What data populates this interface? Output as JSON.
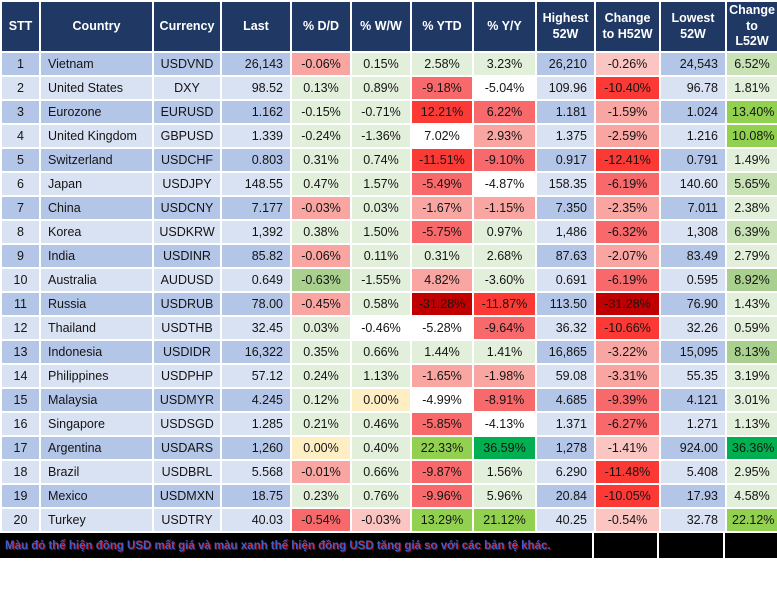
{
  "header": {
    "columns": [
      {
        "key": "stt",
        "label": "STT"
      },
      {
        "key": "country",
        "label": "Country"
      },
      {
        "key": "currency",
        "label": "Currency"
      },
      {
        "key": "last",
        "label": "Last"
      },
      {
        "key": "dd",
        "label": "% D/D"
      },
      {
        "key": "ww",
        "label": "% W/W"
      },
      {
        "key": "ytd",
        "label": "% YTD"
      },
      {
        "key": "yy",
        "label": "% Y/Y"
      },
      {
        "key": "high52",
        "label": "Highest 52W"
      },
      {
        "key": "chg_h52",
        "label": "Change to H52W"
      },
      {
        "key": "low52",
        "label": "Lowest 52W"
      },
      {
        "key": "chg_l52",
        "label": "Change to L52W"
      }
    ]
  },
  "colors": {
    "header_bg": "#203864",
    "band_odd": "#B4C6E7",
    "band_even": "#D9E2F2",
    "scale": {
      "p1": "#FBC5C2",
      "p2": "#F9A6A2",
      "p3": "#F8８B85",
      "p6": "#C00000",
      "y": "#FDEEC3",
      "n1": "#E2EFDA",
      "n2": "#C8E2B5",
      "n3": "#A9D08E",
      "n4": "#92D050",
      "n5": "#00B050",
      "p4": "#F8696B",
      "p5": "#FB3A36"
    },
    "footer_bg": "#000000",
    "footer_text": "#3d5fc9"
  },
  "rows": [
    {
      "stt": "1",
      "country": "Vietnam",
      "currency": "USDVND",
      "last": "26,143",
      "dd": {
        "v": "-0.06%",
        "c": "p2"
      },
      "ww": {
        "v": "0.15%",
        "c": "n1"
      },
      "ytd": {
        "v": "2.58%",
        "c": "n1"
      },
      "yy": {
        "v": "3.23%",
        "c": "n1"
      },
      "high": "26,210",
      "chgh": {
        "v": "-0.26%",
        "c": "p1"
      },
      "low": "24,543",
      "chgl": {
        "v": "6.52%",
        "c": "n2"
      }
    },
    {
      "stt": "2",
      "country": "United States",
      "currency": "DXY",
      "last": "98.52",
      "dd": {
        "v": "0.13%",
        "c": "n1"
      },
      "ww": {
        "v": "0.89%",
        "c": "n1"
      },
      "ytd": {
        "v": "-9.18%",
        "c": "p4"
      },
      "yy": {
        "v": "-5.04%",
        "c": "p3"
      },
      "high": "109.96",
      "chgh": {
        "v": "-10.40%",
        "c": "p5"
      },
      "low": "96.78",
      "chgl": {
        "v": "1.81%",
        "c": "n1"
      }
    },
    {
      "stt": "3",
      "country": "Eurozone",
      "currency": "EURUSD",
      "last": "1.162",
      "dd": {
        "v": "-0.15%",
        "c": "n1"
      },
      "ww": {
        "v": "-0.71%",
        "c": "n1"
      },
      "ytd": {
        "v": "12.21%",
        "c": "p5"
      },
      "yy": {
        "v": "6.22%",
        "c": "p4"
      },
      "high": "1.181",
      "chgh": {
        "v": "-1.59%",
        "c": "p2"
      },
      "low": "1.024",
      "chgl": {
        "v": "13.40%",
        "c": "n4"
      }
    },
    {
      "stt": "4",
      "country": "United Kingdom",
      "currency": "GBPUSD",
      "last": "1.339",
      "dd": {
        "v": "-0.24%",
        "c": "n1"
      },
      "ww": {
        "v": "-1.36%",
        "c": "n1"
      },
      "ytd": {
        "v": "7.02%",
        "c": "p3"
      },
      "yy": {
        "v": "2.93%",
        "c": "p2"
      },
      "high": "1.375",
      "chgh": {
        "v": "-2.59%",
        "c": "p2"
      },
      "low": "1.216",
      "chgl": {
        "v": "10.08%",
        "c": "n4"
      }
    },
    {
      "stt": "5",
      "country": "Switzerland",
      "currency": "USDCHF",
      "last": "0.803",
      "dd": {
        "v": "0.31%",
        "c": "n1"
      },
      "ww": {
        "v": "0.74%",
        "c": "n1"
      },
      "ytd": {
        "v": "-11.51%",
        "c": "p5"
      },
      "yy": {
        "v": "-9.10%",
        "c": "p4"
      },
      "high": "0.917",
      "chgh": {
        "v": "-12.41%",
        "c": "p5"
      },
      "low": "0.791",
      "chgl": {
        "v": "1.49%",
        "c": "n1"
      }
    },
    {
      "stt": "6",
      "country": "Japan",
      "currency": "USDJPY",
      "last": "148.55",
      "dd": {
        "v": "0.47%",
        "c": "n1"
      },
      "ww": {
        "v": "1.57%",
        "c": "n1"
      },
      "ytd": {
        "v": "-5.49%",
        "c": "p4"
      },
      "yy": {
        "v": "-4.87%",
        "c": "p3"
      },
      "high": "158.35",
      "chgh": {
        "v": "-6.19%",
        "c": "p4"
      },
      "low": "140.60",
      "chgl": {
        "v": "5.65%",
        "c": "n2"
      }
    },
    {
      "stt": "7",
      "country": "China",
      "currency": "USDCNY",
      "last": "7.177",
      "dd": {
        "v": "-0.03%",
        "c": "p2"
      },
      "ww": {
        "v": "0.03%",
        "c": "n1"
      },
      "ytd": {
        "v": "-1.67%",
        "c": "p2"
      },
      "yy": {
        "v": "-1.15%",
        "c": "p2"
      },
      "high": "7.350",
      "chgh": {
        "v": "-2.35%",
        "c": "p2"
      },
      "low": "7.011",
      "chgl": {
        "v": "2.38%",
        "c": "n1"
      }
    },
    {
      "stt": "8",
      "country": "Korea",
      "currency": "USDKRW",
      "last": "1,392",
      "dd": {
        "v": "0.38%",
        "c": "n1"
      },
      "ww": {
        "v": "1.50%",
        "c": "n1"
      },
      "ytd": {
        "v": "-5.75%",
        "c": "p4"
      },
      "yy": {
        "v": "0.97%",
        "c": "n1"
      },
      "high": "1,486",
      "chgh": {
        "v": "-6.32%",
        "c": "p4"
      },
      "low": "1,308",
      "chgl": {
        "v": "6.39%",
        "c": "n2"
      }
    },
    {
      "stt": "9",
      "country": "India",
      "currency": "USDINR",
      "last": "85.82",
      "dd": {
        "v": "-0.06%",
        "c": "p2"
      },
      "ww": {
        "v": "0.11%",
        "c": "n1"
      },
      "ytd": {
        "v": "0.31%",
        "c": "n1"
      },
      "yy": {
        "v": "2.68%",
        "c": "n1"
      },
      "high": "87.63",
      "chgh": {
        "v": "-2.07%",
        "c": "p2"
      },
      "low": "83.49",
      "chgl": {
        "v": "2.79%",
        "c": "n1"
      }
    },
    {
      "stt": "10",
      "country": "Australia",
      "currency": "AUDUSD",
      "last": "0.649",
      "dd": {
        "v": "-0.63%",
        "c": "n3"
      },
      "ww": {
        "v": "-1.55%",
        "c": "n1"
      },
      "ytd": {
        "v": "4.82%",
        "c": "p2"
      },
      "yy": {
        "v": "-3.60%",
        "c": "n1"
      },
      "high": "0.691",
      "chgh": {
        "v": "-6.19%",
        "c": "p4"
      },
      "low": "0.595",
      "chgl": {
        "v": "8.92%",
        "c": "n3"
      }
    },
    {
      "stt": "11",
      "country": "Russia",
      "currency": "USDRUB",
      "last": "78.00",
      "dd": {
        "v": "-0.45%",
        "c": "p2"
      },
      "ww": {
        "v": "0.58%",
        "c": "n1"
      },
      "ytd": {
        "v": "-31.28%",
        "c": "p6"
      },
      "yy": {
        "v": "-11.87%",
        "c": "p5"
      },
      "high": "113.50",
      "chgh": {
        "v": "-31.28%",
        "c": "p6"
      },
      "low": "76.90",
      "chgl": {
        "v": "1.43%",
        "c": "n1"
      }
    },
    {
      "stt": "12",
      "country": "Thailand",
      "currency": "USDTHB",
      "last": "32.45",
      "dd": {
        "v": "0.03%",
        "c": "n1"
      },
      "ww": {
        "v": "-0.46%",
        "c": "p3"
      },
      "ytd": {
        "v": "-5.28%",
        "c": "p3"
      },
      "yy": {
        "v": "-9.64%",
        "c": "p4"
      },
      "high": "36.32",
      "chgh": {
        "v": "-10.66%",
        "c": "p5"
      },
      "low": "32.26",
      "chgl": {
        "v": "0.59%",
        "c": "n1"
      }
    },
    {
      "stt": "13",
      "country": "Indonesia",
      "currency": "USDIDR",
      "last": "16,322",
      "dd": {
        "v": "0.35%",
        "c": "n1"
      },
      "ww": {
        "v": "0.66%",
        "c": "n1"
      },
      "ytd": {
        "v": "1.44%",
        "c": "n1"
      },
      "yy": {
        "v": "1.41%",
        "c": "n1"
      },
      "high": "16,865",
      "chgh": {
        "v": "-3.22%",
        "c": "p2"
      },
      "low": "15,095",
      "chgl": {
        "v": "8.13%",
        "c": "n3"
      }
    },
    {
      "stt": "14",
      "country": "Philippines",
      "currency": "USDPHP",
      "last": "57.12",
      "dd": {
        "v": "0.24%",
        "c": "n1"
      },
      "ww": {
        "v": "1.13%",
        "c": "n1"
      },
      "ytd": {
        "v": "-1.65%",
        "c": "p2"
      },
      "yy": {
        "v": "-1.98%",
        "c": "p2"
      },
      "high": "59.08",
      "chgh": {
        "v": "-3.31%",
        "c": "p2"
      },
      "low": "55.35",
      "chgl": {
        "v": "3.19%",
        "c": "n1"
      }
    },
    {
      "stt": "15",
      "country": "Malaysia",
      "currency": "USDMYR",
      "last": "4.245",
      "dd": {
        "v": "0.12%",
        "c": "n1"
      },
      "ww": {
        "v": "0.00%",
        "c": "y"
      },
      "ytd": {
        "v": "-4.99%",
        "c": "p3"
      },
      "yy": {
        "v": "-8.91%",
        "c": "p4"
      },
      "high": "4.685",
      "chgh": {
        "v": "-9.39%",
        "c": "p4"
      },
      "low": "4.121",
      "chgl": {
        "v": "3.01%",
        "c": "n1"
      }
    },
    {
      "stt": "16",
      "country": "Singapore",
      "currency": "USDSGD",
      "last": "1.285",
      "dd": {
        "v": "0.21%",
        "c": "n1"
      },
      "ww": {
        "v": "0.46%",
        "c": "n1"
      },
      "ytd": {
        "v": "-5.85%",
        "c": "p4"
      },
      "yy": {
        "v": "-4.13%",
        "c": "p3"
      },
      "high": "1.371",
      "chgh": {
        "v": "-6.27%",
        "c": "p4"
      },
      "low": "1.271",
      "chgl": {
        "v": "1.13%",
        "c": "n1"
      }
    },
    {
      "stt": "17",
      "country": "Argentina",
      "currency": "USDARS",
      "last": "1,260",
      "dd": {
        "v": "0.00%",
        "c": "y"
      },
      "ww": {
        "v": "0.40%",
        "c": "n1"
      },
      "ytd": {
        "v": "22.33%",
        "c": "n4"
      },
      "yy": {
        "v": "36.59%",
        "c": "n5"
      },
      "high": "1,278",
      "chgh": {
        "v": "-1.41%",
        "c": "p1"
      },
      "low": "924.00",
      "chgl": {
        "v": "36.36%",
        "c": "n5"
      }
    },
    {
      "stt": "18",
      "country": "Brazil",
      "currency": "USDBRL",
      "last": "5.568",
      "dd": {
        "v": "-0.01%",
        "c": "p2"
      },
      "ww": {
        "v": "0.66%",
        "c": "n1"
      },
      "ytd": {
        "v": "-9.87%",
        "c": "p4"
      },
      "yy": {
        "v": "1.56%",
        "c": "n1"
      },
      "high": "6.290",
      "chgh": {
        "v": "-11.48%",
        "c": "p5"
      },
      "low": "5.408",
      "chgl": {
        "v": "2.95%",
        "c": "n1"
      }
    },
    {
      "stt": "19",
      "country": "Mexico",
      "currency": "USDMXN",
      "last": "18.75",
      "dd": {
        "v": "0.23%",
        "c": "n1"
      },
      "ww": {
        "v": "0.76%",
        "c": "n1"
      },
      "ytd": {
        "v": "-9.96%",
        "c": "p4"
      },
      "yy": {
        "v": "5.96%",
        "c": "n1"
      },
      "high": "20.84",
      "chgh": {
        "v": "-10.05%",
        "c": "p5"
      },
      "low": "17.93",
      "chgl": {
        "v": "4.58%",
        "c": "n1"
      }
    },
    {
      "stt": "20",
      "country": "Turkey",
      "currency": "USDTRY",
      "last": "40.03",
      "dd": {
        "v": "-0.54%",
        "c": "p4"
      },
      "ww": {
        "v": "-0.03%",
        "c": "p1"
      },
      "ytd": {
        "v": "13.29%",
        "c": "n4"
      },
      "yy": {
        "v": "21.12%",
        "c": "n4"
      },
      "high": "40.25",
      "chgh": {
        "v": "-0.54%",
        "c": "p1"
      },
      "low": "32.78",
      "chgl": {
        "v": "22.12%",
        "c": "n4"
      }
    }
  ],
  "footer": {
    "caption": "Màu đỏ thể hiện đồng USD mất giá và màu xanh thể hiện đồng USD tăng giá so với các bản tệ khác."
  },
  "chart_data": {
    "type": "table",
    "title": "USD exchange rates vs world currencies (52-week view)",
    "columns": [
      "STT",
      "Country",
      "Currency",
      "Last",
      "% D/D",
      "% W/W",
      "% YTD",
      "% Y/Y",
      "Highest 52W",
      "Change to H52W",
      "Lowest 52W",
      "Change to L52W"
    ],
    "rows": [
      [
        "1",
        "Vietnam",
        "USDVND",
        "26,143",
        "-0.06%",
        "0.15%",
        "2.58%",
        "3.23%",
        "26,210",
        "-0.26%",
        "24,543",
        "6.52%"
      ],
      [
        "2",
        "United States",
        "DXY",
        "98.52",
        "0.13%",
        "0.89%",
        "-9.18%",
        "-5.04%",
        "109.96",
        "-10.40%",
        "96.78",
        "1.81%"
      ],
      [
        "3",
        "Eurozone",
        "EURUSD",
        "1.162",
        "-0.15%",
        "-0.71%",
        "12.21%",
        "6.22%",
        "1.181",
        "-1.59%",
        "1.024",
        "13.40%"
      ],
      [
        "4",
        "United Kingdom",
        "GBPUSD",
        "1.339",
        "-0.24%",
        "-1.36%",
        "7.02%",
        "2.93%",
        "1.375",
        "-2.59%",
        "1.216",
        "10.08%"
      ],
      [
        "5",
        "Switzerland",
        "USDCHF",
        "0.803",
        "0.31%",
        "0.74%",
        "-11.51%",
        "-9.10%",
        "0.917",
        "-12.41%",
        "0.791",
        "1.49%"
      ],
      [
        "6",
        "Japan",
        "USDJPY",
        "148.55",
        "0.47%",
        "1.57%",
        "-5.49%",
        "-4.87%",
        "158.35",
        "-6.19%",
        "140.60",
        "5.65%"
      ],
      [
        "7",
        "China",
        "USDCNY",
        "7.177",
        "-0.03%",
        "0.03%",
        "-1.67%",
        "-1.15%",
        "7.350",
        "-2.35%",
        "7.011",
        "2.38%"
      ],
      [
        "8",
        "Korea",
        "USDKRW",
        "1,392",
        "0.38%",
        "1.50%",
        "-5.75%",
        "0.97%",
        "1,486",
        "-6.32%",
        "1,308",
        "6.39%"
      ],
      [
        "9",
        "India",
        "USDINR",
        "85.82",
        "-0.06%",
        "0.11%",
        "0.31%",
        "2.68%",
        "87.63",
        "-2.07%",
        "83.49",
        "2.79%"
      ],
      [
        "10",
        "Australia",
        "AUDUSD",
        "0.649",
        "-0.63%",
        "-1.55%",
        "4.82%",
        "-3.60%",
        "0.691",
        "-6.19%",
        "0.595",
        "8.92%"
      ],
      [
        "11",
        "Russia",
        "USDRUB",
        "78.00",
        "-0.45%",
        "0.58%",
        "-31.28%",
        "-11.87%",
        "113.50",
        "-31.28%",
        "76.90",
        "1.43%"
      ],
      [
        "12",
        "Thailand",
        "USDTHB",
        "32.45",
        "0.03%",
        "-0.46%",
        "-5.28%",
        "-9.64%",
        "36.32",
        "-10.66%",
        "32.26",
        "0.59%"
      ],
      [
        "13",
        "Indonesia",
        "USDIDR",
        "16,322",
        "0.35%",
        "0.66%",
        "1.44%",
        "1.41%",
        "16,865",
        "-3.22%",
        "15,095",
        "8.13%"
      ],
      [
        "14",
        "Philippines",
        "USDPHP",
        "57.12",
        "0.24%",
        "1.13%",
        "-1.65%",
        "-1.98%",
        "59.08",
        "-3.31%",
        "55.35",
        "3.19%"
      ],
      [
        "15",
        "Malaysia",
        "USDMYR",
        "4.245",
        "0.12%",
        "0.00%",
        "-4.99%",
        "-8.91%",
        "4.685",
        "-9.39%",
        "4.121",
        "3.01%"
      ],
      [
        "16",
        "Singapore",
        "USDSGD",
        "1.285",
        "0.21%",
        "0.46%",
        "-5.85%",
        "-4.13%",
        "1.371",
        "-6.27%",
        "1.271",
        "1.13%"
      ],
      [
        "17",
        "Argentina",
        "USDARS",
        "1,260",
        "0.00%",
        "0.40%",
        "22.33%",
        "36.59%",
        "1,278",
        "-1.41%",
        "924.00",
        "36.36%"
      ],
      [
        "18",
        "Brazil",
        "USDBRL",
        "5.568",
        "-0.01%",
        "0.66%",
        "-9.87%",
        "1.56%",
        "6.290",
        "-11.48%",
        "5.408",
        "2.95%"
      ],
      [
        "19",
        "Mexico",
        "USDMXN",
        "18.75",
        "0.23%",
        "0.76%",
        "-9.96%",
        "5.96%",
        "20.84",
        "-10.05%",
        "17.93",
        "4.58%"
      ],
      [
        "20",
        "Turkey",
        "USDTRY",
        "40.03",
        "-0.54%",
        "-0.03%",
        "13.29%",
        "21.12%",
        "40.25",
        "-0.54%",
        "32.78",
        "22.12%"
      ]
    ],
    "legend_note": "Cell background color scale: red = USD depreciating, green = USD appreciating vs the currency; intensity proportional to magnitude"
  }
}
